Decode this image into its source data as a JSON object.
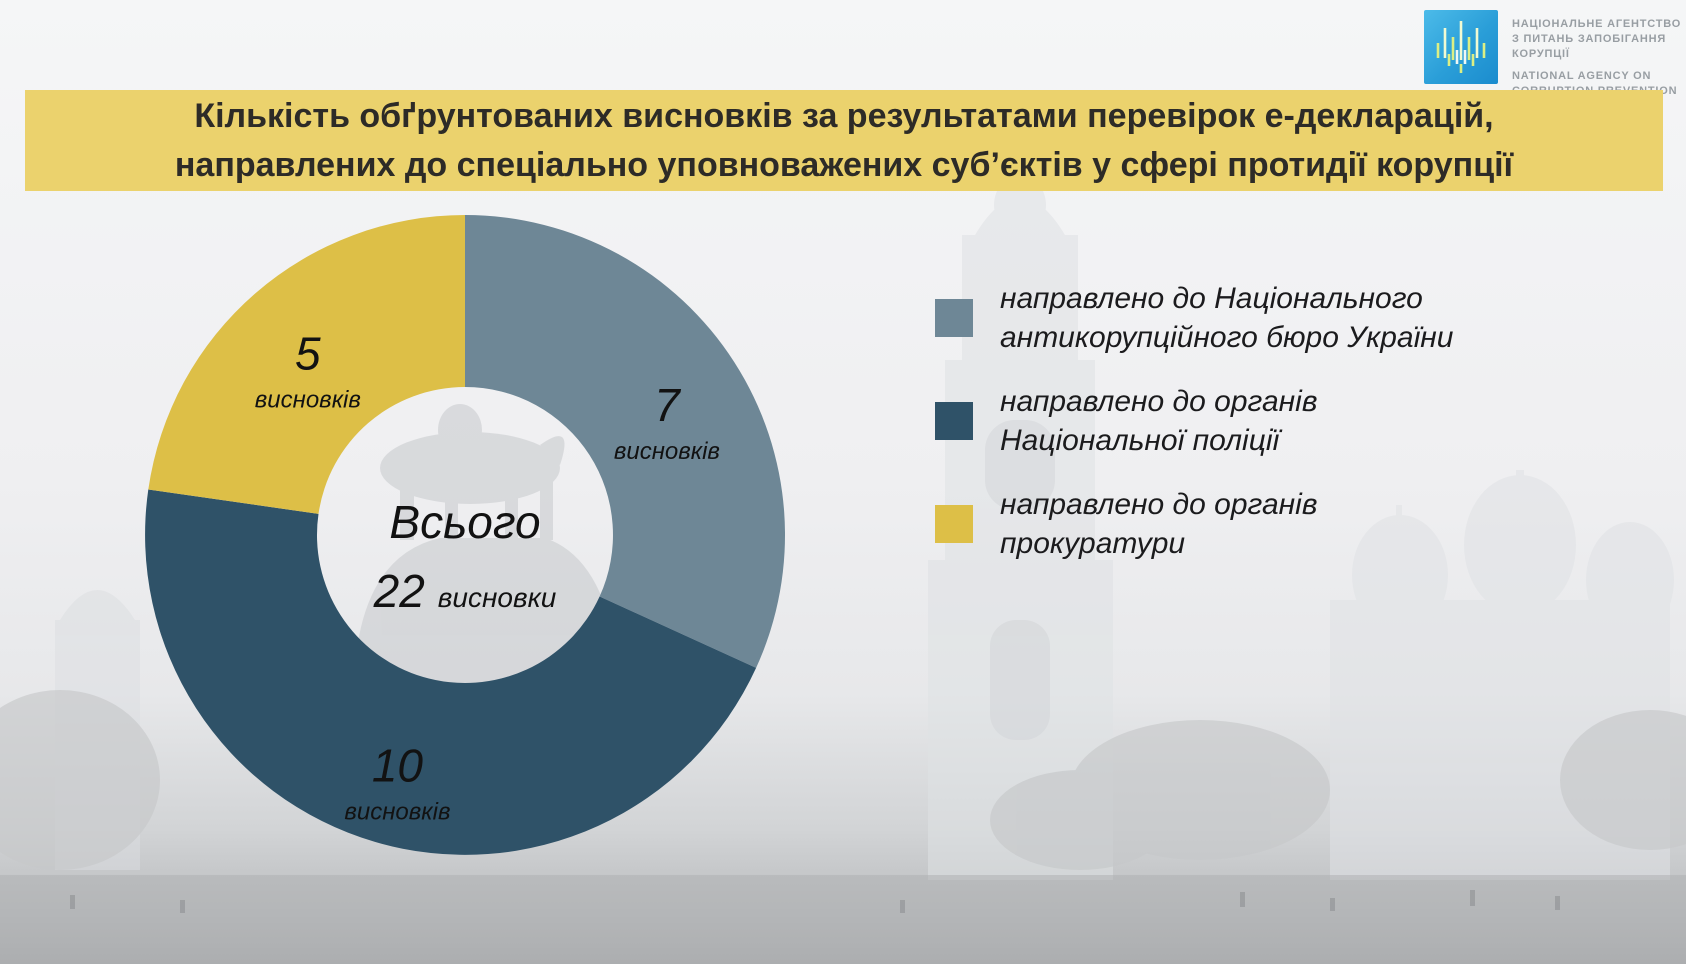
{
  "logo": {
    "agency_uk_line1": "НАЦІОНАЛЬНЕ АГЕНТСТВО",
    "agency_uk_line2": "З ПИТАНЬ ЗАПОБІГАННЯ КОРУПЦІЇ",
    "agency_en_line1": "NATIONAL AGENCY ON",
    "agency_en_line2": "CORRUPTION PREVENTION"
  },
  "title": {
    "line1": "Кількість обґрунтованих висновків за результатами перевірок е-декларацій,",
    "line2": "направлених до спеціально уповноважених суб’єктів у сфері протидії корупції",
    "background": "#ebd26d"
  },
  "chart_data": {
    "type": "pie",
    "donut": true,
    "title": "Кількість обґрунтованих висновків за результатами перевірок е-декларацій, направлених до спеціально уповноважених суб’єктів у сфері протидії корупції",
    "total": 22,
    "center": {
      "label": "Всього",
      "value": "22",
      "unit": "висновки"
    },
    "legend_position": "right",
    "start_angle_deg": 0,
    "series": [
      {
        "name": "направлено до Національного антикорупційного бюро України",
        "value": 7,
        "unit": "висновків",
        "color": "#6e8796"
      },
      {
        "name": "направлено до органів Національної поліції",
        "value": 10,
        "unit": "висновків",
        "color": "#2f5268"
      },
      {
        "name": "направлено до органів прокуратури",
        "value": 5,
        "unit": "висновків",
        "color": "#ddbf47"
      }
    ]
  },
  "legend": {
    "items": [
      {
        "line1": "направлено до Національного",
        "line2": "антикорупційного бюро України"
      },
      {
        "line1": "направлено до органів",
        "line2": "Національної поліції"
      },
      {
        "line1": "направлено до органів",
        "line2": "прокуратури"
      }
    ]
  }
}
